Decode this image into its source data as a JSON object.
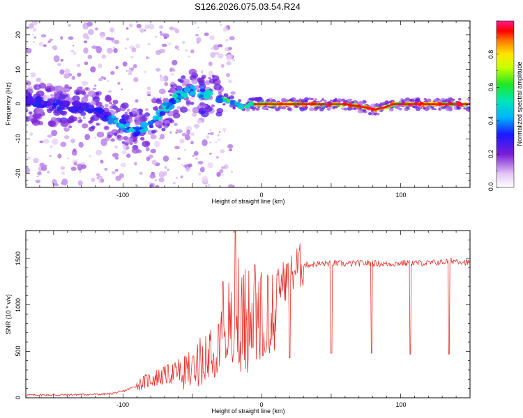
{
  "title": "S126.2026.075.03.54.R24",
  "chart_data": [
    {
      "type": "heatmap",
      "xlabel": "Height of straight line (km)",
      "ylabel": "Frequency (Hz)",
      "xlim": [
        -170,
        150
      ],
      "ylim": [
        -24,
        24
      ],
      "xticks": [
        "-100",
        "0",
        "100"
      ],
      "yticks": [
        "20",
        "10",
        "0",
        "-10",
        "-20"
      ],
      "ridge": {
        "x": [
          -170,
          -150,
          -130,
          -115,
          -100,
          -90,
          -80,
          -70,
          -60,
          -50,
          -40,
          -33,
          -25,
          -18,
          -13,
          -8,
          0,
          20,
          40,
          60,
          75,
          82,
          88,
          95,
          110,
          150
        ],
        "y": [
          1,
          0,
          -1,
          -3,
          -6,
          -8,
          -6,
          -1,
          2,
          4,
          3,
          2,
          1,
          0,
          -1,
          0,
          0,
          0,
          0,
          0,
          -1,
          -1.5,
          -1,
          0,
          0,
          0
        ]
      },
      "colorbar": {
        "label": "Normalized spectral amplitude",
        "ticks": [
          "0.0",
          "0.2",
          "0.4",
          "0.6",
          "0.8"
        ],
        "range": [
          0,
          1
        ]
      },
      "grid": false
    },
    {
      "type": "line",
      "xlabel": "Height of straight line (km)",
      "ylabel": "SNR (10 * v/v)",
      "xlim": [
        -170,
        150
      ],
      "ylim": [
        0,
        1800
      ],
      "xticks": [
        "-100",
        "0",
        "100"
      ],
      "yticks": [
        "0",
        "500",
        "1000",
        "1500"
      ],
      "series": [
        {
          "color": "#e8302a",
          "x": [
            -170,
            -150,
            -130,
            -110,
            -100,
            -90,
            -85,
            -80,
            -70,
            -60,
            -50,
            -45,
            -40,
            -35,
            -30,
            -25,
            -20,
            -15,
            -10,
            -5,
            0,
            5,
            10,
            15,
            20,
            25,
            30,
            40,
            50,
            60,
            70,
            80,
            90,
            100,
            110,
            120,
            130,
            140,
            150
          ],
          "y": [
            30,
            30,
            35,
            40,
            70,
            130,
            170,
            200,
            240,
            280,
            330,
            400,
            500,
            620,
            700,
            800,
            780,
            850,
            900,
            950,
            1000,
            1080,
            1150,
            1250,
            1300,
            1400,
            1430,
            1440,
            1450,
            1440,
            1450,
            1450,
            1440,
            1450,
            1450,
            1450,
            1460,
            1480,
            1450
          ]
        }
      ],
      "dips": [
        {
          "x": 20,
          "y": 430
        },
        {
          "x": 50,
          "y": 480
        },
        {
          "x": 79,
          "y": 480
        },
        {
          "x": 107,
          "y": 470
        },
        {
          "x": 135,
          "y": 470
        }
      ],
      "spikes": [
        {
          "x": -19,
          "y": 1800
        },
        {
          "x": -17,
          "y": 1500
        },
        {
          "x": -28,
          "y": 1250
        },
        {
          "x": -12,
          "y": 1380
        }
      ],
      "grid": false
    }
  ]
}
